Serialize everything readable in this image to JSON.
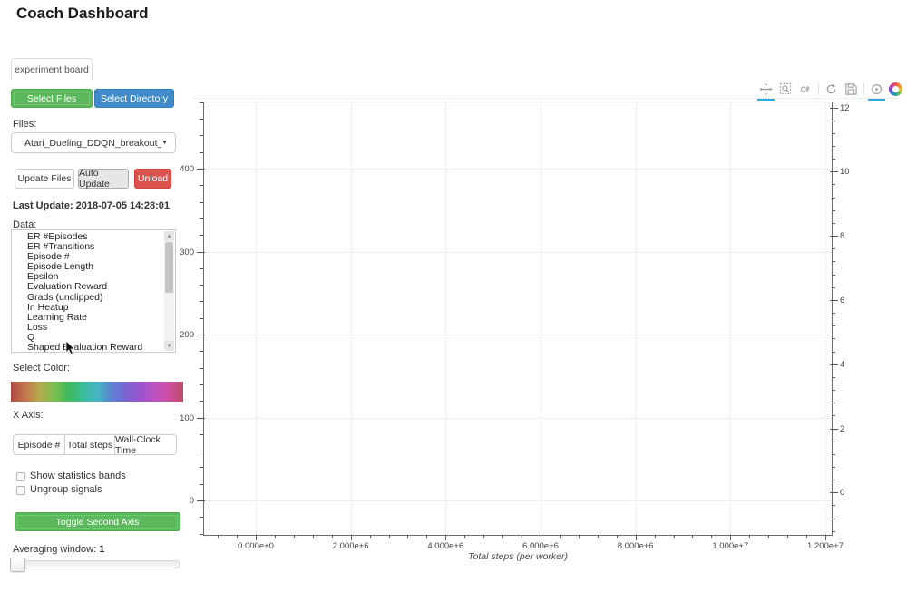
{
  "page": {
    "title": "Coach Dashboard"
  },
  "tabs": [
    {
      "label": "experiment board",
      "active": true
    }
  ],
  "file_controls": {
    "select_files": "Select Files",
    "select_directory": "Select Directory",
    "files_label": "Files:",
    "selected_file": "Atari_Dueling_DDQN_breakout_new",
    "update_files": "Update Files",
    "auto_update": "Auto Update",
    "unload": "Unload",
    "last_update": "Last Update: 2018-07-05 14:28:01"
  },
  "data_panel": {
    "label": "Data:",
    "items": [
      "ER #Episodes",
      "ER #Transitions",
      "Episode #",
      "Episode Length",
      "Epsilon",
      "Evaluation Reward",
      "Grads (unclipped)",
      "In Heatup",
      "Learning Rate",
      "Loss",
      "Q",
      "Shaped Evaluation Reward"
    ]
  },
  "color_picker": {
    "label": "Select Color:",
    "gradient_colors": [
      "#b14a45",
      "#c1764c",
      "#b3ab4e",
      "#7dbd50",
      "#3eba5e",
      "#39bd97",
      "#45b5c3",
      "#5b82d1",
      "#7a64d3",
      "#9b55cf",
      "#bc50c0",
      "#cc4f9f",
      "#bd4a62"
    ]
  },
  "x_axis_group": {
    "label": "X Axis:",
    "options": [
      "Episode #",
      "Total steps",
      "Wall-Clock Time"
    ],
    "active": "Total steps"
  },
  "checkboxes": [
    {
      "label": "Show statistics bands",
      "checked": false
    },
    {
      "label": "Ungroup signals",
      "checked": false
    }
  ],
  "toggle_second_axis": "Toggle Second Axis",
  "averaging": {
    "label": "Averaging window:",
    "value": "1"
  },
  "toolbar": {
    "tools": [
      "pan",
      "box-zoom",
      "wheel-zoom",
      "reset",
      "save",
      "hover"
    ],
    "active_tools": [
      "pan",
      "hover"
    ],
    "active_color": "#26aae1"
  },
  "chart_data": {
    "type": "line",
    "title": "",
    "series": [],
    "note": "empty plot - no signals selected",
    "xlabel": "Total steps (per worker)",
    "x_ticks": [
      "0.000e+0",
      "2.000e+6",
      "4.000e+6",
      "6.000e+6",
      "8.000e+6",
      "1.000e+7",
      "1.200e+7"
    ],
    "x_tick_values": [
      0,
      2000000,
      4000000,
      6000000,
      8000000,
      10000000,
      12000000
    ],
    "xlim": [
      -1100000,
      12150000
    ],
    "y_left_ticks": [
      0,
      100,
      200,
      300,
      400
    ],
    "ylim_left": [
      -42,
      481
    ],
    "y_right_ticks": [
      0,
      2,
      4,
      6,
      8,
      10,
      12
    ],
    "ylim_right": [
      -1.32,
      12.18
    ],
    "grid": true,
    "legend": "none"
  }
}
